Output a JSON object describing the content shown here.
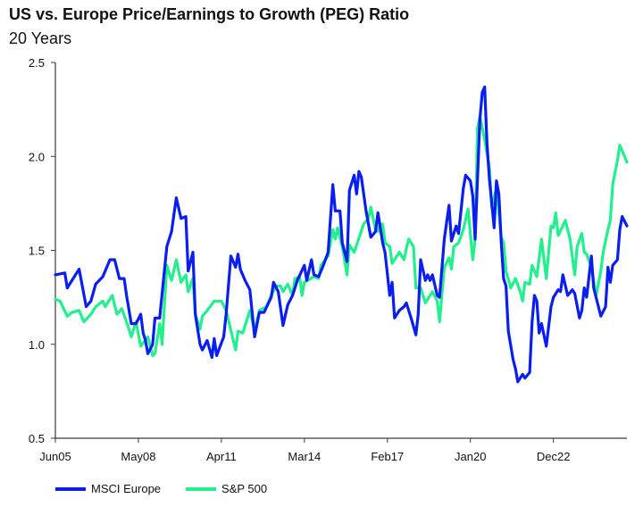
{
  "chart_data": {
    "type": "line",
    "title": "US vs. Europe Price/Earnings to Growth (PEG) Ratio",
    "subtitle": "20 Years",
    "xlabel": "",
    "ylabel": "",
    "x_unit": "months since Jun05",
    "xlim": [
      0,
      241
    ],
    "ylim": [
      0.5,
      2.5
    ],
    "yticks": [
      "0.5",
      "1.0",
      "1.5",
      "2.0",
      "2.5"
    ],
    "ytick_values": [
      0.5,
      1.0,
      1.5,
      2.0,
      2.5
    ],
    "xticks": [
      {
        "label": "Jun05",
        "m": 0
      },
      {
        "label": "May08",
        "m": 35
      },
      {
        "label": "Apr11",
        "m": 70
      },
      {
        "label": "Mar14",
        "m": 105
      },
      {
        "label": "Feb17",
        "m": 140
      },
      {
        "label": "Jan20",
        "m": 175
      },
      {
        "label": "Dec22",
        "m": 210
      }
    ],
    "grid": false,
    "legend_position": "bottom-left",
    "series": [
      {
        "name": "MSCI Europe",
        "color": "#0a1ef0",
        "points": [
          [
            0,
            1.37
          ],
          [
            4,
            1.38
          ],
          [
            5,
            1.3
          ],
          [
            8,
            1.36
          ],
          [
            10,
            1.4
          ],
          [
            13,
            1.2
          ],
          [
            15,
            1.23
          ],
          [
            17,
            1.32
          ],
          [
            20,
            1.36
          ],
          [
            23,
            1.45
          ],
          [
            25,
            1.45
          ],
          [
            27,
            1.35
          ],
          [
            29,
            1.35
          ],
          [
            30,
            1.26
          ],
          [
            32,
            1.11
          ],
          [
            34,
            1.11
          ],
          [
            36,
            1.16
          ],
          [
            37,
            1.06
          ],
          [
            38,
            1.02
          ],
          [
            39,
            0.95
          ],
          [
            41,
            1.0
          ],
          [
            42,
            1.14
          ],
          [
            44,
            1.14
          ],
          [
            47,
            1.52
          ],
          [
            49,
            1.6
          ],
          [
            51,
            1.78
          ],
          [
            53,
            1.67
          ],
          [
            55,
            1.68
          ],
          [
            56,
            1.39
          ],
          [
            58,
            1.49
          ],
          [
            59,
            1.16
          ],
          [
            61,
            1.0
          ],
          [
            62,
            0.97
          ],
          [
            64,
            1.02
          ],
          [
            66,
            0.93
          ],
          [
            67,
            1.03
          ],
          [
            68,
            0.94
          ],
          [
            71,
            1.04
          ],
          [
            72,
            1.16
          ],
          [
            74,
            1.47
          ],
          [
            76,
            1.41
          ],
          [
            77,
            1.48
          ],
          [
            78,
            1.4
          ],
          [
            80,
            1.34
          ],
          [
            82,
            1.29
          ],
          [
            84,
            1.04
          ],
          [
            86,
            1.17
          ],
          [
            88,
            1.17
          ],
          [
            91,
            1.25
          ],
          [
            92,
            1.33
          ],
          [
            94,
            1.28
          ],
          [
            96,
            1.1
          ],
          [
            98,
            1.21
          ],
          [
            100,
            1.26
          ],
          [
            102,
            1.34
          ],
          [
            105,
            1.42
          ],
          [
            106,
            1.34
          ],
          [
            108,
            1.45
          ],
          [
            109,
            1.37
          ],
          [
            111,
            1.36
          ],
          [
            113,
            1.42
          ],
          [
            115,
            1.49
          ],
          [
            117,
            1.85
          ],
          [
            118,
            1.71
          ],
          [
            120,
            1.71
          ],
          [
            121,
            1.54
          ],
          [
            123,
            1.44
          ],
          [
            124,
            1.82
          ],
          [
            126,
            1.9
          ],
          [
            127,
            1.8
          ],
          [
            128,
            1.92
          ],
          [
            129,
            1.89
          ],
          [
            131,
            1.71
          ],
          [
            133,
            1.57
          ],
          [
            135,
            1.6
          ],
          [
            136,
            1.7
          ],
          [
            138,
            1.54
          ],
          [
            139,
            1.49
          ],
          [
            141,
            1.26
          ],
          [
            142,
            1.33
          ],
          [
            143,
            1.14
          ],
          [
            145,
            1.18
          ],
          [
            147,
            1.2
          ],
          [
            148,
            1.22
          ],
          [
            150,
            1.14
          ],
          [
            152,
            1.05
          ],
          [
            153,
            1.16
          ],
          [
            154,
            1.45
          ],
          [
            156,
            1.34
          ],
          [
            157,
            1.37
          ],
          [
            158,
            1.34
          ],
          [
            159,
            1.37
          ],
          [
            161,
            1.26
          ],
          [
            162,
            1.25
          ],
          [
            164,
            1.56
          ],
          [
            166,
            1.74
          ],
          [
            167,
            1.55
          ],
          [
            169,
            1.63
          ],
          [
            170,
            1.59
          ],
          [
            172,
            1.83
          ],
          [
            173,
            1.9
          ],
          [
            175,
            1.87
          ],
          [
            176,
            1.79
          ],
          [
            177,
            1.56
          ],
          [
            179,
            2.2
          ],
          [
            180,
            2.34
          ],
          [
            181,
            2.37
          ],
          [
            182,
            2.07
          ],
          [
            183,
            1.88
          ],
          [
            185,
            1.62
          ],
          [
            186,
            1.87
          ],
          [
            187,
            1.8
          ],
          [
            188,
            1.54
          ],
          [
            189,
            1.35
          ],
          [
            190,
            1.31
          ],
          [
            191,
            1.07
          ],
          [
            193,
            0.92
          ],
          [
            194,
            0.87
          ],
          [
            195,
            0.8
          ],
          [
            197,
            0.84
          ],
          [
            198,
            0.82
          ],
          [
            200,
            0.85
          ],
          [
            201,
            1.12
          ],
          [
            202,
            1.26
          ],
          [
            203,
            1.23
          ],
          [
            204,
            1.06
          ],
          [
            205,
            1.11
          ],
          [
            207,
            0.99
          ],
          [
            209,
            1.2
          ],
          [
            210,
            1.25
          ],
          [
            212,
            1.29
          ],
          [
            213,
            1.28
          ],
          [
            214,
            1.37
          ],
          [
            216,
            1.26
          ],
          [
            218,
            1.29
          ],
          [
            219,
            1.27
          ],
          [
            221,
            1.14
          ],
          [
            222,
            1.18
          ],
          [
            223,
            1.3
          ],
          [
            224,
            1.25
          ],
          [
            226,
            1.47
          ],
          [
            227,
            1.3
          ],
          [
            229,
            1.2
          ],
          [
            230,
            1.15
          ],
          [
            232,
            1.2
          ],
          [
            233,
            1.41
          ],
          [
            234,
            1.33
          ],
          [
            235,
            1.42
          ],
          [
            237,
            1.45
          ],
          [
            238,
            1.61
          ],
          [
            239,
            1.68
          ],
          [
            241,
            1.63
          ]
        ]
      },
      {
        "name": "S&P 500",
        "color": "#22f08c",
        "points": [
          [
            0,
            1.24
          ],
          [
            2,
            1.23
          ],
          [
            5,
            1.15
          ],
          [
            7,
            1.17
          ],
          [
            10,
            1.18
          ],
          [
            12,
            1.12
          ],
          [
            15,
            1.16
          ],
          [
            17,
            1.2
          ],
          [
            20,
            1.23
          ],
          [
            21,
            1.2
          ],
          [
            24,
            1.26
          ],
          [
            26,
            1.16
          ],
          [
            28,
            1.19
          ],
          [
            30,
            1.12
          ],
          [
            32,
            1.04
          ],
          [
            34,
            1.12
          ],
          [
            36,
            0.99
          ],
          [
            39,
            1.04
          ],
          [
            41,
            0.94
          ],
          [
            42,
            0.95
          ],
          [
            44,
            1.11
          ],
          [
            45,
            1.0
          ],
          [
            47,
            1.42
          ],
          [
            49,
            1.34
          ],
          [
            51,
            1.45
          ],
          [
            53,
            1.33
          ],
          [
            55,
            1.37
          ],
          [
            56,
            1.28
          ],
          [
            58,
            1.35
          ],
          [
            59,
            1.16
          ],
          [
            61,
            1.08
          ],
          [
            62,
            1.15
          ],
          [
            64,
            1.18
          ],
          [
            67,
            1.23
          ],
          [
            70,
            1.23
          ],
          [
            72,
            1.18
          ],
          [
            76,
            0.97
          ],
          [
            77,
            1.07
          ],
          [
            79,
            1.06
          ],
          [
            82,
            1.18
          ],
          [
            84,
            1.07
          ],
          [
            86,
            1.18
          ],
          [
            89,
            1.2
          ],
          [
            91,
            1.26
          ],
          [
            93,
            1.31
          ],
          [
            95,
            1.31
          ],
          [
            96,
            1.28
          ],
          [
            98,
            1.32
          ],
          [
            100,
            1.26
          ],
          [
            101,
            1.35
          ],
          [
            103,
            1.36
          ],
          [
            104,
            1.26
          ],
          [
            105,
            1.33
          ],
          [
            109,
            1.36
          ],
          [
            111,
            1.35
          ],
          [
            112,
            1.42
          ],
          [
            115,
            1.47
          ],
          [
            117,
            1.61
          ],
          [
            118,
            1.56
          ],
          [
            119,
            1.62
          ],
          [
            121,
            1.52
          ],
          [
            123,
            1.37
          ],
          [
            124,
            1.53
          ],
          [
            126,
            1.49
          ],
          [
            130,
            1.64
          ],
          [
            132,
            1.67
          ],
          [
            133,
            1.73
          ],
          [
            135,
            1.61
          ],
          [
            136,
            1.6
          ],
          [
            137,
            1.64
          ],
          [
            138,
            1.64
          ],
          [
            139,
            1.54
          ],
          [
            141,
            1.52
          ],
          [
            142,
            1.43
          ],
          [
            145,
            1.49
          ],
          [
            147,
            1.45
          ],
          [
            148,
            1.51
          ],
          [
            149,
            1.56
          ],
          [
            151,
            1.52
          ],
          [
            152,
            1.3
          ],
          [
            154,
            1.3
          ],
          [
            156,
            1.22
          ],
          [
            159,
            1.28
          ],
          [
            161,
            1.23
          ],
          [
            162,
            1.12
          ],
          [
            164,
            1.41
          ],
          [
            166,
            1.46
          ],
          [
            167,
            1.4
          ],
          [
            168,
            1.52
          ],
          [
            170,
            1.54
          ],
          [
            172,
            1.61
          ],
          [
            174,
            1.72
          ],
          [
            176,
            1.45
          ],
          [
            177,
            1.56
          ],
          [
            178,
            2.15
          ],
          [
            179,
            2.21
          ],
          [
            181,
            2.09
          ],
          [
            183,
            1.94
          ],
          [
            184,
            1.73
          ],
          [
            186,
            1.83
          ],
          [
            188,
            1.57
          ],
          [
            189,
            1.54
          ],
          [
            190,
            1.39
          ],
          [
            192,
            1.3
          ],
          [
            194,
            1.35
          ],
          [
            196,
            1.28
          ],
          [
            197,
            1.23
          ],
          [
            198,
            1.33
          ],
          [
            200,
            1.32
          ],
          [
            201,
            1.42
          ],
          [
            202,
            1.39
          ],
          [
            203,
            1.36
          ],
          [
            205,
            1.56
          ],
          [
            207,
            1.35
          ],
          [
            209,
            1.63
          ],
          [
            210,
            1.62
          ],
          [
            211,
            1.7
          ],
          [
            212,
            1.58
          ],
          [
            214,
            1.63
          ],
          [
            215,
            1.66
          ],
          [
            217,
            1.56
          ],
          [
            219,
            1.37
          ],
          [
            220,
            1.52
          ],
          [
            222,
            1.59
          ],
          [
            223,
            1.49
          ],
          [
            224,
            1.48
          ],
          [
            226,
            1.41
          ],
          [
            228,
            1.26
          ],
          [
            230,
            1.39
          ],
          [
            231,
            1.49
          ],
          [
            233,
            1.61
          ],
          [
            234,
            1.66
          ],
          [
            235,
            1.85
          ],
          [
            237,
            1.98
          ],
          [
            238,
            2.06
          ],
          [
            239,
            2.03
          ],
          [
            241,
            1.97
          ]
        ]
      }
    ]
  }
}
